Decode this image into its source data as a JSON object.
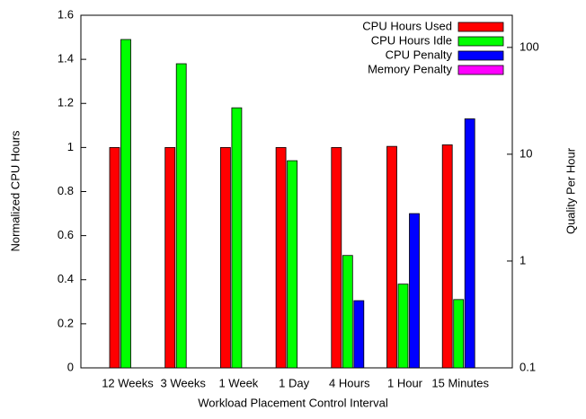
{
  "chart_data": {
    "type": "bar",
    "xlabel": "Workload Placement Control Interval",
    "ylabel": "Normalized CPU Hours",
    "y2label": "Quality Per Hour",
    "categories": [
      "12 Weeks",
      "3 Weeks",
      "1 Week",
      "1 Day",
      "4 Hours",
      "1 Hour",
      "15 Minutes"
    ],
    "series": [
      {
        "name": "CPU Hours Used",
        "color": "#ff0000",
        "values": [
          1,
          1,
          1,
          1,
          1,
          1.005,
          1.012
        ]
      },
      {
        "name": "CPU Hours Idle",
        "color": "#00ff00",
        "values": [
          1.49,
          1.38,
          1.18,
          0.94,
          0.51,
          0.38,
          0.31
        ]
      },
      {
        "name": "CPU Penalty",
        "color": "#0000ff",
        "values": [
          0,
          0,
          0,
          0,
          0.305,
          0.7,
          1.13
        ]
      },
      {
        "name": "Memory Penalty",
        "color": "#ff00ff",
        "values": [
          0,
          0,
          0,
          0,
          0,
          0,
          0
        ]
      }
    ],
    "ylim": [
      0,
      1.6
    ],
    "yticks": [
      0,
      {
        "value": 0.2,
        "label": "0.2"
      },
      {
        "value": 0.4,
        "label": "0.4"
      },
      {
        "value": 0.6,
        "label": "0.6"
      },
      {
        "value": 0.8,
        "label": "0.8"
      },
      1,
      {
        "value": 1.2,
        "label": "1.2"
      },
      {
        "value": 1.4,
        "label": "1.4"
      },
      {
        "value": 1.6,
        "label": "1.6"
      }
    ],
    "y2lim": [
      0.1,
      200
    ],
    "y2ticks": [
      0.1,
      1,
      10,
      100
    ],
    "y2scale": "log",
    "legend": "upper right",
    "grid": false
  }
}
